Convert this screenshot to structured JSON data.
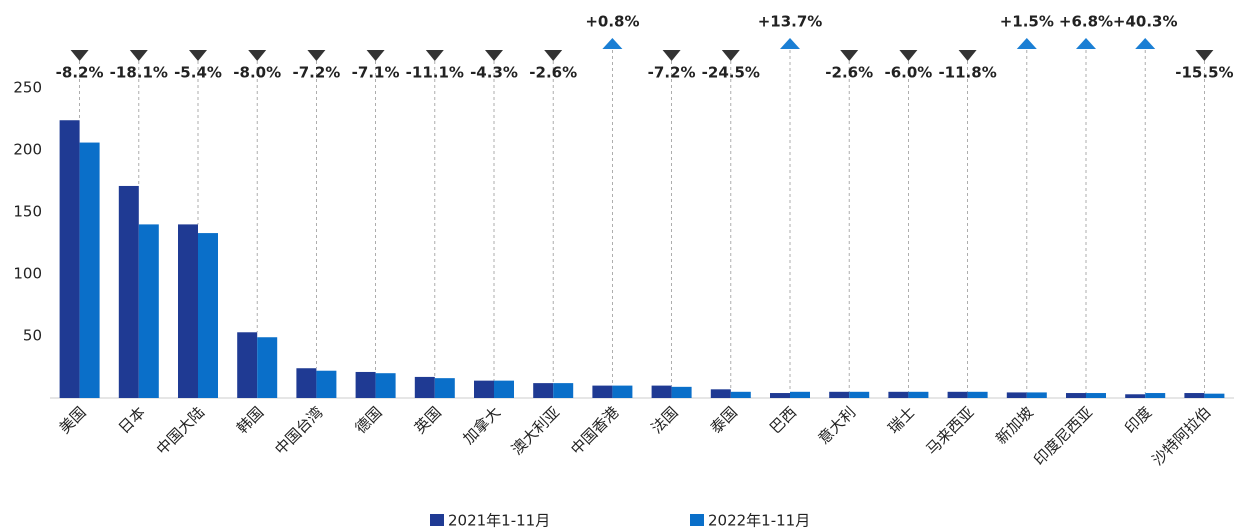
{
  "chart_data": {
    "type": "bar",
    "categories": [
      "美国",
      "日本",
      "中国大陆",
      "韩国",
      "中国台湾",
      "德国",
      "英国",
      "加拿大",
      "澳大利亚",
      "中国香港",
      "法国",
      "泰国",
      "巴西",
      "意大利",
      "瑞士",
      "马来西亚",
      "新加坡",
      "印度尼西亚",
      "印度",
      "沙特阿拉伯"
    ],
    "series": [
      {
        "name": "2021年1-11月",
        "color": "#1f3a93",
        "values": [
          224,
          171,
          140,
          53,
          24,
          21,
          17,
          14,
          12,
          10,
          10,
          7,
          4,
          5,
          5,
          5,
          4.5,
          4,
          3,
          4
        ]
      },
      {
        "name": "2022年1-11月",
        "color": "#0a6fc9",
        "values": [
          206,
          140,
          133,
          49,
          22,
          20,
          16,
          14,
          12,
          10,
          9,
          5,
          5,
          5,
          5,
          5,
          4.5,
          4,
          4,
          3.5
        ]
      }
    ],
    "changes": [
      -8.2,
      -18.1,
      -5.4,
      -8.0,
      -7.2,
      -7.1,
      -11.1,
      -4.3,
      -2.6,
      0.8,
      -7.2,
      -24.5,
      13.7,
      -2.6,
      -6.0,
      -11.8,
      1.5,
      6.8,
      40.3,
      -15.5
    ],
    "change_labels": [
      "-8.2%",
      "-18.1%",
      "-5.4%",
      "-8.0%",
      "-7.2%",
      "-7.1%",
      "-11.1%",
      "-4.3%",
      "-2.6%",
      "+0.8%",
      "-7.2%",
      "-24.5%",
      "+13.7%",
      "-2.6%",
      "-6.0%",
      "-11.8%",
      "+1.5%",
      "+6.8%",
      "+40.3%",
      "-15.5%"
    ],
    "ylim": [
      0,
      250
    ],
    "yticks": [
      50,
      100,
      150,
      200,
      250
    ],
    "legend": "bottom"
  }
}
